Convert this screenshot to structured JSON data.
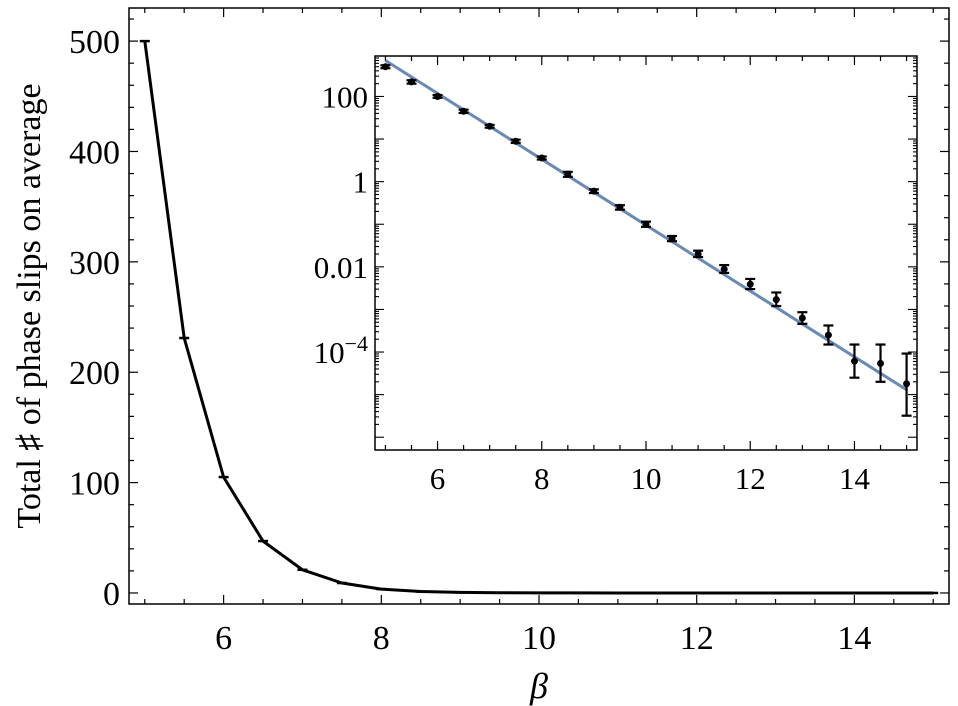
{
  "chart_data": [
    {
      "type": "line",
      "xlabel": "β",
      "ylabel": "Total ♯ of phase slips on average",
      "xlim": [
        4.8,
        15.2
      ],
      "ylim": [
        -10,
        530
      ],
      "xticks": [
        6,
        8,
        10,
        12,
        14
      ],
      "yticks": [
        0,
        100,
        200,
        300,
        400,
        500
      ],
      "grid": false,
      "legend": "none",
      "series": [
        {
          "x": [
            5,
            5.5,
            6,
            6.5,
            7,
            7.5,
            8,
            8.5,
            9,
            9.5,
            10,
            10.5,
            11,
            11.5,
            12,
            12.5,
            13,
            13.5,
            14,
            14.5,
            15
          ],
          "y": [
            500,
            231,
            105,
            47,
            21,
            9,
            3.5,
            1.3,
            0.5,
            0.2,
            0.08,
            0.03,
            0.01,
            0.004,
            0.0016,
            0.0006,
            0.00025,
            0.0001,
            4e-05,
            1.6e-05,
            6e-06
          ],
          "color": "#000000"
        }
      ]
    },
    {
      "type": "scatter",
      "scale_y": "log",
      "xlim": [
        4.8,
        15.2
      ],
      "ylim_log10": [
        -6.3,
        2.95
      ],
      "xticks": [
        6,
        8,
        10,
        12,
        14
      ],
      "yticks": [
        {
          "value": 100,
          "label": "100"
        },
        {
          "value": 1,
          "label": "1"
        },
        {
          "value": 0.01,
          "label": "0.01"
        },
        {
          "value": 0.0001,
          "label": "10",
          "exponent": "−4"
        }
      ],
      "grid": false,
      "legend": "none",
      "series": [
        {
          "kind": "points_with_errorbars",
          "color": "#000000",
          "x": [
            5,
            5.5,
            6,
            6.5,
            7,
            7.5,
            8,
            8.5,
            9,
            9.5,
            10,
            10.5,
            11,
            11.5,
            12,
            12.5,
            13,
            13.5,
            14,
            14.5,
            15
          ],
          "y": [
            500,
            220,
            100,
            45,
            20,
            8.9,
            3.6,
            1.5,
            0.6,
            0.25,
            0.1,
            0.046,
            0.02,
            0.0088,
            0.0039,
            0.0017,
            0.00063,
            0.00025,
            6.1e-05,
            5.4e-05,
            1.8e-05
          ],
          "err_low": [
            460,
            200,
            93,
            41,
            18.5,
            8.1,
            3.3,
            1.3,
            0.54,
            0.22,
            0.087,
            0.04,
            0.017,
            0.0072,
            0.003,
            0.0012,
            0.00046,
            0.00015,
            2.5e-05,
            2e-05,
            3.2e-06
          ],
          "err_high": [
            540,
            240,
            108,
            49,
            21.5,
            9.7,
            3.9,
            1.7,
            0.66,
            0.28,
            0.115,
            0.053,
            0.024,
            0.011,
            0.0052,
            0.0025,
            0.00086,
            0.00042,
            0.00015,
            0.00015,
            9.2e-05
          ]
        },
        {
          "kind": "fit_line",
          "color": "#6a8ab5",
          "x": [
            5,
            15
          ],
          "y": [
            700,
            1.3e-05
          ]
        }
      ]
    }
  ]
}
